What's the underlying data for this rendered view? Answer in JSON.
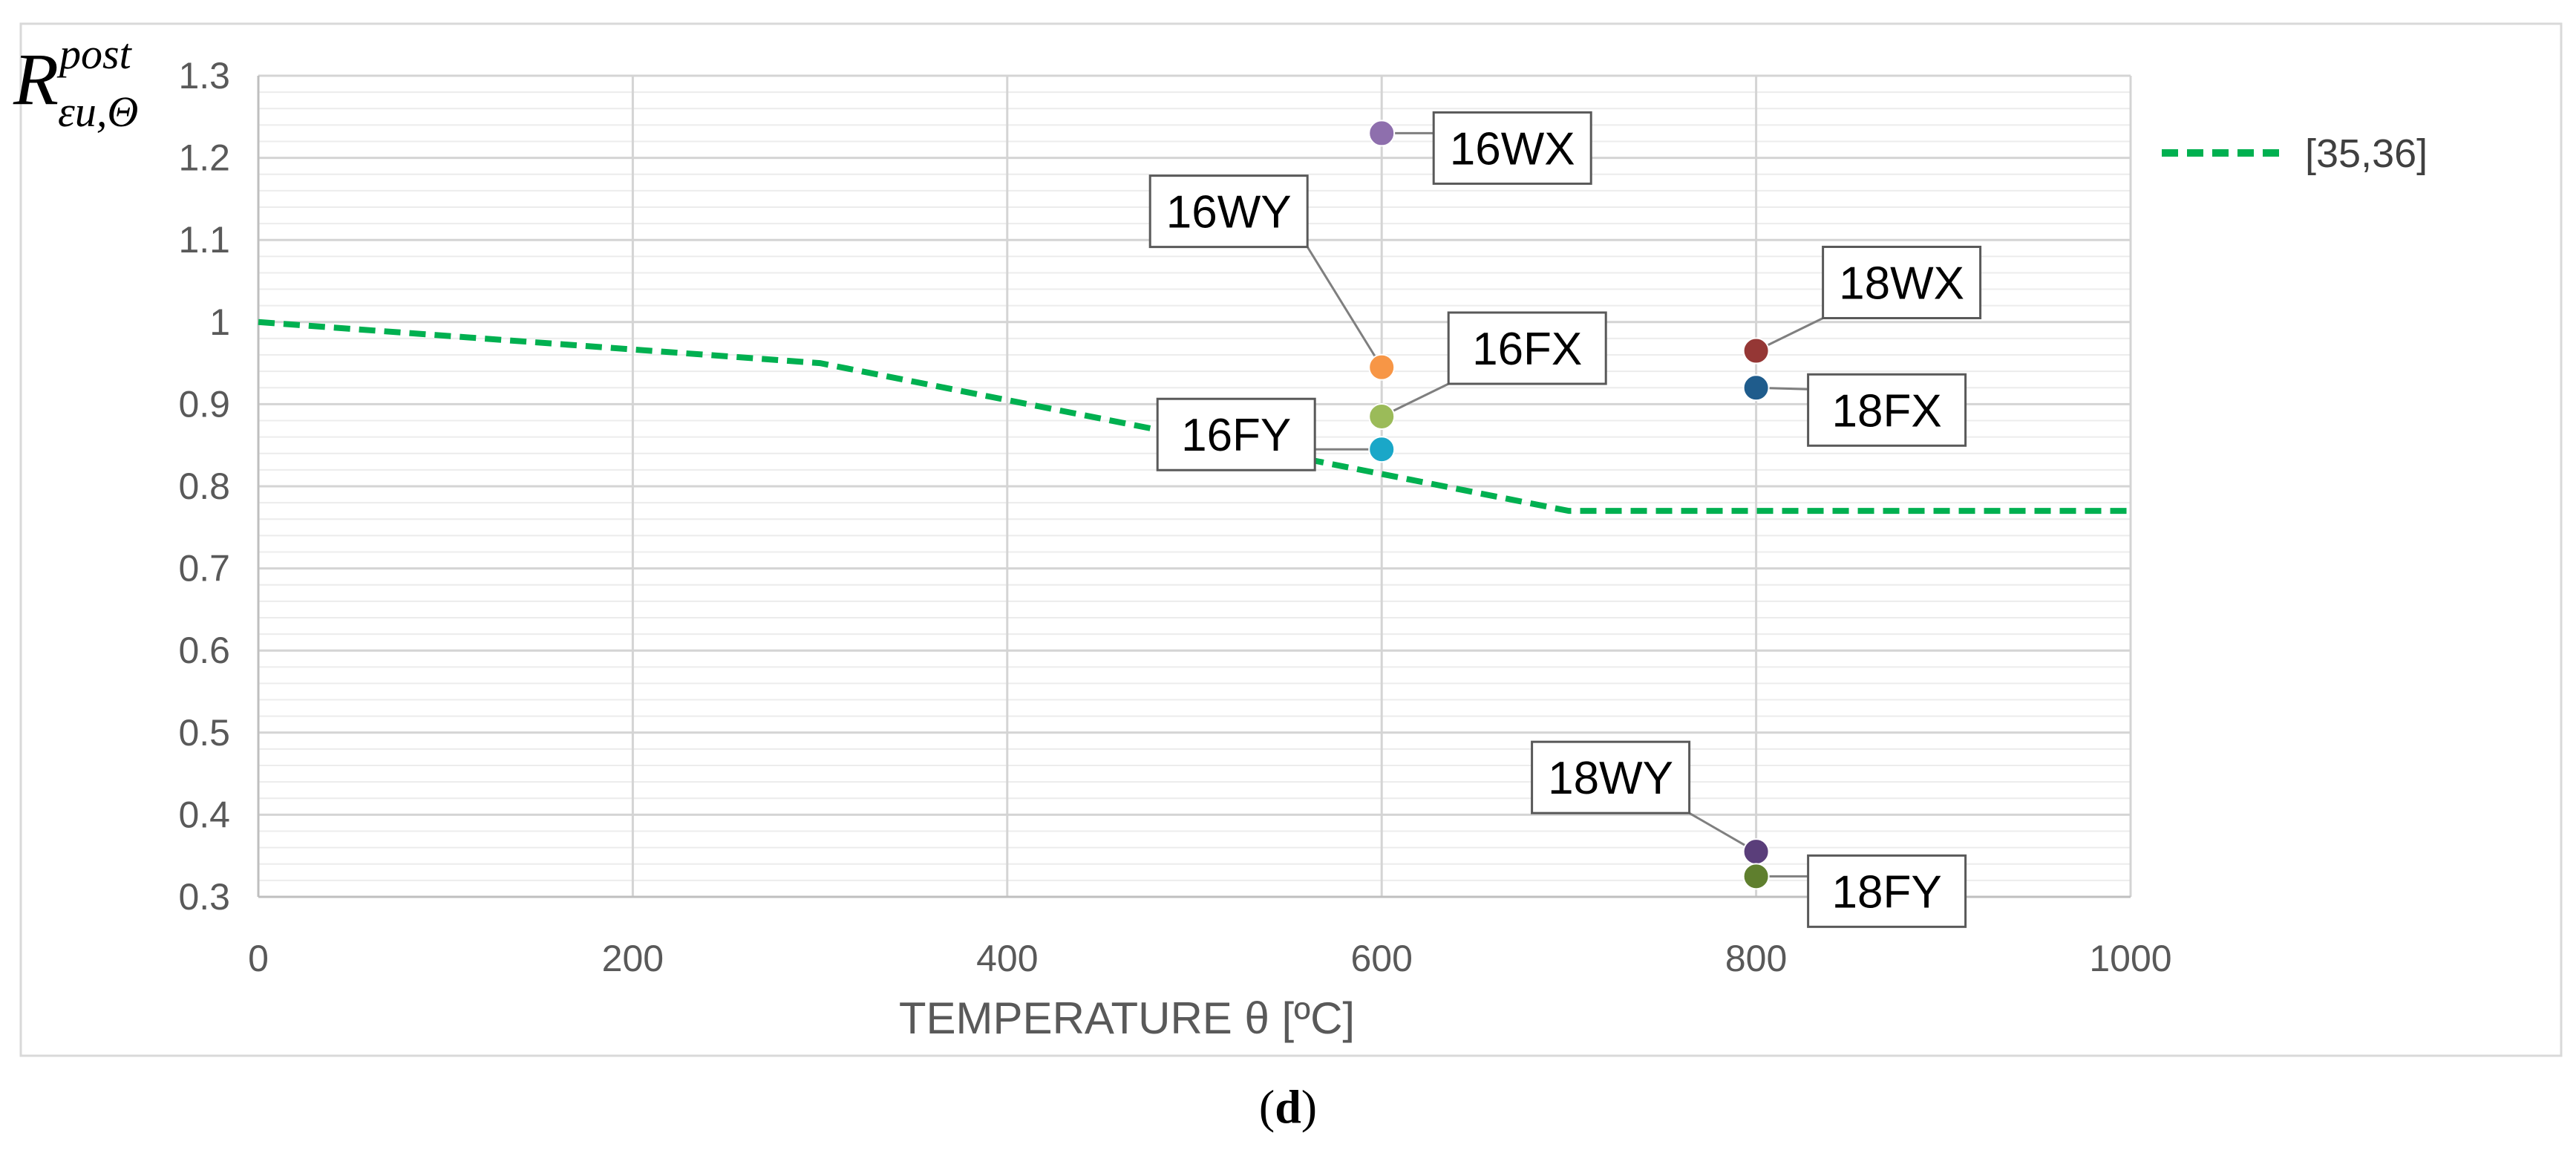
{
  "chart_data": {
    "type": "scatter",
    "title": "",
    "xlabel": "TEMPERATURE θ [ºC]",
    "ylabel": {
      "base": "R",
      "superscript": "post",
      "subscript": "εu,Θ"
    },
    "xlim": [
      0,
      1000
    ],
    "ylim": [
      0.3,
      1.3
    ],
    "x_ticks": [
      "0",
      "200",
      "400",
      "600",
      "800",
      "1000"
    ],
    "y_ticks": [
      "0.3",
      "0.4",
      "0.5",
      "0.6",
      "0.7",
      "0.8",
      "0.9",
      "1",
      "1.1",
      "1.2",
      "1.3"
    ],
    "grid": true,
    "legend_position": "right",
    "series": [
      {
        "name": "[35,36]",
        "kind": "line",
        "style": "dashed",
        "color": "#00b050",
        "x": [
          0,
          300,
          700,
          1000
        ],
        "y": [
          1.0,
          0.95,
          0.77,
          0.77
        ]
      }
    ],
    "points": [
      {
        "label": "16WX",
        "x": 600,
        "y": 1.23,
        "color": "#8e6fad"
      },
      {
        "label": "16WY",
        "x": 600,
        "y": 0.945,
        "color": "#f79646"
      },
      {
        "label": "16FX",
        "x": 600,
        "y": 0.885,
        "color": "#9bbb59"
      },
      {
        "label": "16FY",
        "x": 600,
        "y": 0.845,
        "color": "#1aa7c8"
      },
      {
        "label": "18WX",
        "x": 800,
        "y": 0.965,
        "color": "#953735"
      },
      {
        "label": "18FX",
        "x": 800,
        "y": 0.92,
        "color": "#1f5c8c"
      },
      {
        "label": "18WY",
        "x": 800,
        "y": 0.355,
        "color": "#5a3e7a"
      },
      {
        "label": "18FY",
        "x": 800,
        "y": 0.325,
        "color": "#5f7f2e"
      }
    ]
  },
  "caption": "(d)"
}
